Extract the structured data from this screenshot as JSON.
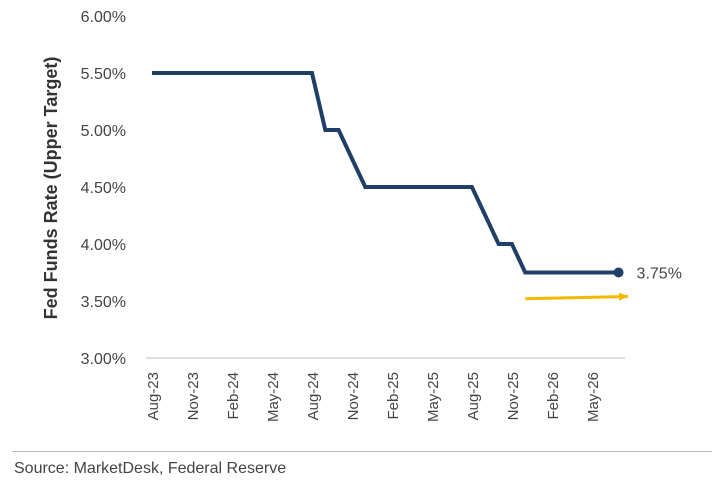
{
  "chart_data": {
    "type": "line",
    "ylabel": "Fed Funds Rate (Upper Target)",
    "xlabel": "",
    "ylim": [
      3.0,
      6.0
    ],
    "yticks": [
      "3.00%",
      "3.50%",
      "4.00%",
      "4.50%",
      "5.00%",
      "5.50%",
      "6.00%"
    ],
    "ytick_values": [
      3.0,
      3.5,
      4.0,
      4.5,
      5.0,
      5.5,
      6.0
    ],
    "xticks": [
      "Aug-23",
      "Nov-23",
      "Feb-24",
      "May-24",
      "Aug-24",
      "Nov-24",
      "Feb-25",
      "May-25",
      "Aug-25",
      "Nov-25",
      "Feb-26",
      "May-26"
    ],
    "grid": false,
    "series": [
      {
        "color": "#1f3f66",
        "x": [
          "2023-08",
          "2023-09",
          "2023-10",
          "2023-11",
          "2023-12",
          "2024-01",
          "2024-02",
          "2024-03",
          "2024-04",
          "2024-05",
          "2024-06",
          "2024-07",
          "2024-08",
          "2024-09",
          "2024-10",
          "2024-11",
          "2024-12",
          "2025-01",
          "2025-02",
          "2025-03",
          "2025-04",
          "2025-05",
          "2025-06",
          "2025-07",
          "2025-08",
          "2025-09",
          "2025-10",
          "2025-11",
          "2025-12",
          "2026-01",
          "2026-02",
          "2026-03",
          "2026-04",
          "2026-05",
          "2026-06",
          "2026-07"
        ],
        "values": [
          5.5,
          5.5,
          5.5,
          5.5,
          5.5,
          5.5,
          5.5,
          5.5,
          5.5,
          5.5,
          5.5,
          5.5,
          5.5,
          5.0,
          5.0,
          4.75,
          4.5,
          4.5,
          4.5,
          4.5,
          4.5,
          4.5,
          4.5,
          4.5,
          4.5,
          4.25,
          4.0,
          4.0,
          3.75,
          3.75,
          3.75,
          3.75,
          3.75,
          3.75,
          3.75,
          3.75
        ]
      }
    ],
    "end_label": "3.75%",
    "arrow": {
      "color": "#f5b800",
      "from": {
        "x": "2025-12",
        "y": 3.52
      },
      "to": {
        "x": "2026-08",
        "y": 3.54
      }
    }
  },
  "footer": {
    "source": "Source: MarketDesk, Federal Reserve"
  }
}
